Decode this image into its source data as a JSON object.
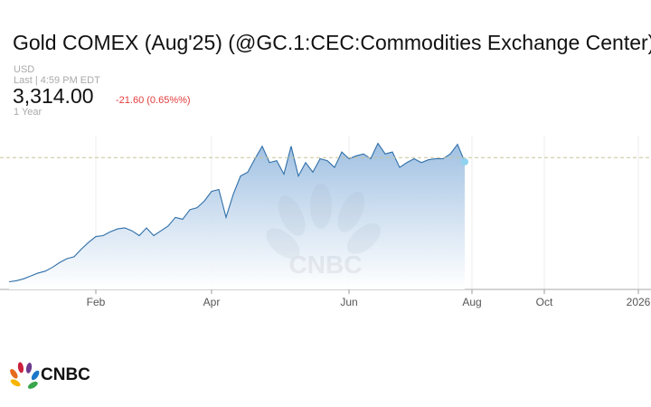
{
  "chart_data": {
    "type": "area",
    "title": "Gold COMEX (Aug'25) (@GC.1:CEC:Commodities Exchange Center)",
    "currency": "USD",
    "last_label": "Last | 4:59 PM EDT",
    "price": "3,314.00",
    "change": "-21.60 (0.65%%)",
    "range": "1 Year",
    "logo": "CNBC",
    "color": "#2f6fa8",
    "ylim": [
      2650,
      3450
    ],
    "reference_line": 3335.6,
    "categories": [
      null,
      null,
      null,
      null,
      null,
      null,
      null,
      null,
      null,
      null,
      null,
      null,
      "Feb",
      null,
      null,
      null,
      null,
      null,
      null,
      null,
      null,
      null,
      null,
      null,
      null,
      null,
      null,
      null,
      "Apr",
      null,
      null,
      null,
      null,
      null,
      null,
      null,
      null,
      null,
      null,
      null,
      null,
      null,
      null,
      null,
      null,
      null,
      null,
      "Jun",
      null,
      null,
      null,
      null,
      null,
      null,
      null,
      null,
      null,
      null,
      null,
      null,
      null,
      null,
      null,
      null,
      "Aug",
      null,
      null,
      null,
      null,
      null,
      null,
      null,
      null,
      null,
      "Oct",
      null,
      null,
      null,
      null,
      null,
      null,
      null,
      null,
      null,
      null,
      null,
      null,
      "2026"
    ],
    "values": [
      2690,
      2695,
      2705,
      2720,
      2735,
      2745,
      2765,
      2790,
      2810,
      2820,
      2860,
      2895,
      2925,
      2930,
      2950,
      2965,
      2970,
      2955,
      2930,
      2970,
      2930,
      2955,
      2980,
      3025,
      3015,
      3065,
      3075,
      3110,
      3160,
      3170,
      3025,
      3145,
      3240,
      3260,
      3330,
      3395,
      3310,
      3320,
      3250,
      3395,
      3240,
      3310,
      3260,
      3330,
      3320,
      3285,
      3365,
      3330,
      3345,
      3355,
      3330,
      3410,
      3355,
      3365,
      3285,
      3310,
      3330,
      3310,
      3325,
      3330,
      3330,
      3355,
      3405,
      3314,
      null,
      null,
      null,
      null,
      null,
      null,
      null,
      null,
      null,
      null,
      null,
      null,
      null,
      null,
      null,
      null,
      null,
      null,
      null,
      null,
      null,
      null,
      null,
      null
    ]
  }
}
